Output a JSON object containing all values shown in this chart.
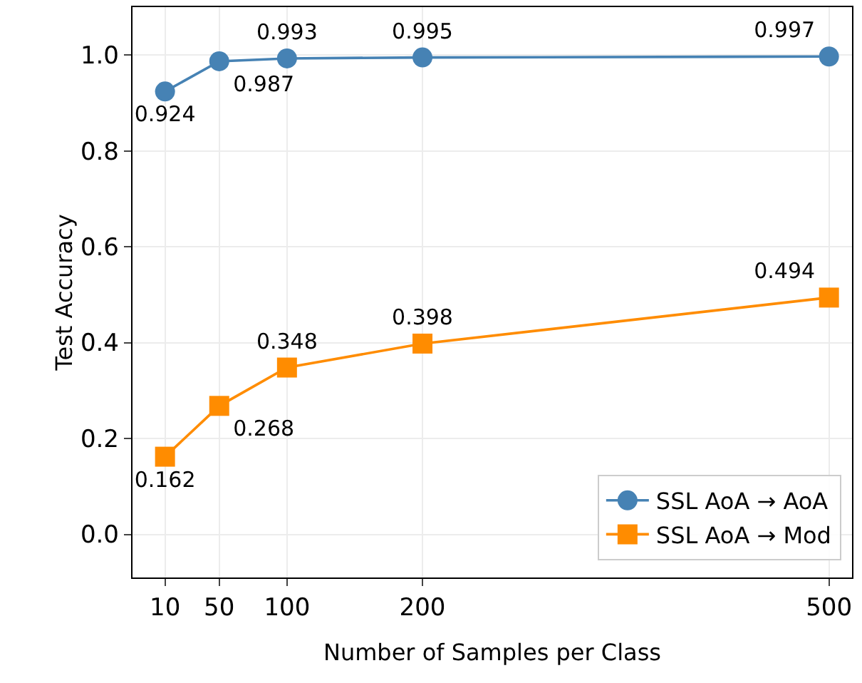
{
  "chart_data": {
    "type": "line",
    "xlabel": "Number of Samples per Class",
    "ylabel": "Test Accuracy",
    "x": [
      10,
      50,
      100,
      200,
      500
    ],
    "series": [
      {
        "name": "SSL AoA → AoA",
        "color": "#4682b4",
        "marker": "circle",
        "values": [
          0.924,
          0.987,
          0.993,
          0.995,
          0.997
        ]
      },
      {
        "name": "SSL AoA → Mod",
        "color": "#ff8c00",
        "marker": "square",
        "values": [
          0.162,
          0.268,
          0.348,
          0.398,
          0.494
        ]
      }
    ],
    "xlim": [
      -14,
      517
    ],
    "xticks": [
      10,
      50,
      100,
      200,
      500
    ],
    "ylim": [
      -0.09,
      1.1
    ],
    "yticks": [
      {
        "value": 0,
        "label": "0.0"
      },
      {
        "value": 0.2,
        "label": "0.2"
      },
      {
        "value": 0.4,
        "label": "0.4"
      },
      {
        "value": 0.6,
        "label": "0.6"
      },
      {
        "value": 0.8,
        "label": "0.8"
      },
      {
        "value": 1,
        "label": "1.0"
      }
    ],
    "grid": true,
    "legend": "bottom right",
    "data_labels": true,
    "line_style": "solid"
  }
}
